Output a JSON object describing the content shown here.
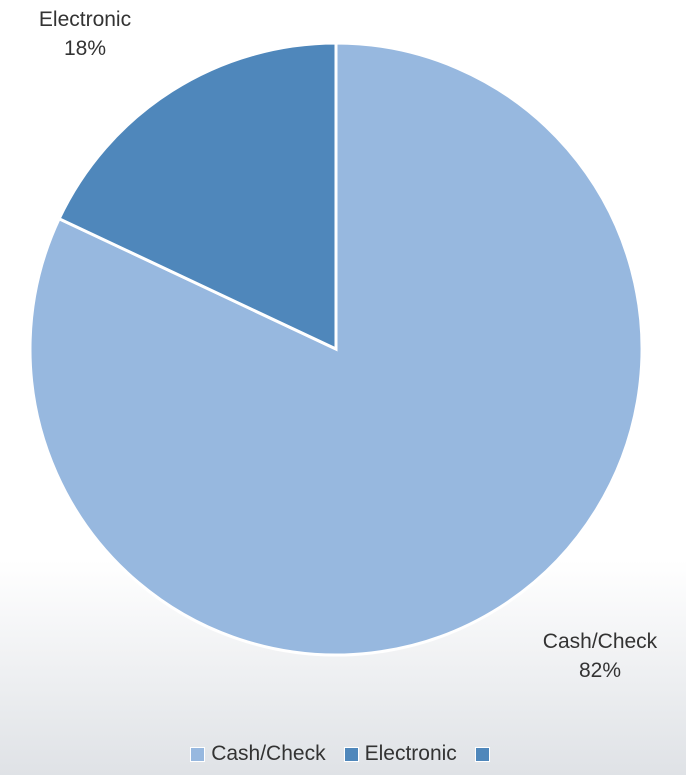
{
  "chart_data": {
    "type": "pie",
    "slices": [
      {
        "label": "Cash/Check",
        "value": 82,
        "value_label": "82%",
        "color": "#97b8df"
      },
      {
        "label": "Electronic",
        "value": 18,
        "value_label": "18%",
        "color": "#4f87bb"
      }
    ],
    "legend": {
      "placement": "bottom",
      "entries": [
        {
          "label": "Cash/Check",
          "color": "#97b8df"
        },
        {
          "label": "Electronic",
          "color": "#4f87bb"
        },
        {
          "label": "",
          "color": "#4f87bb"
        }
      ]
    }
  }
}
